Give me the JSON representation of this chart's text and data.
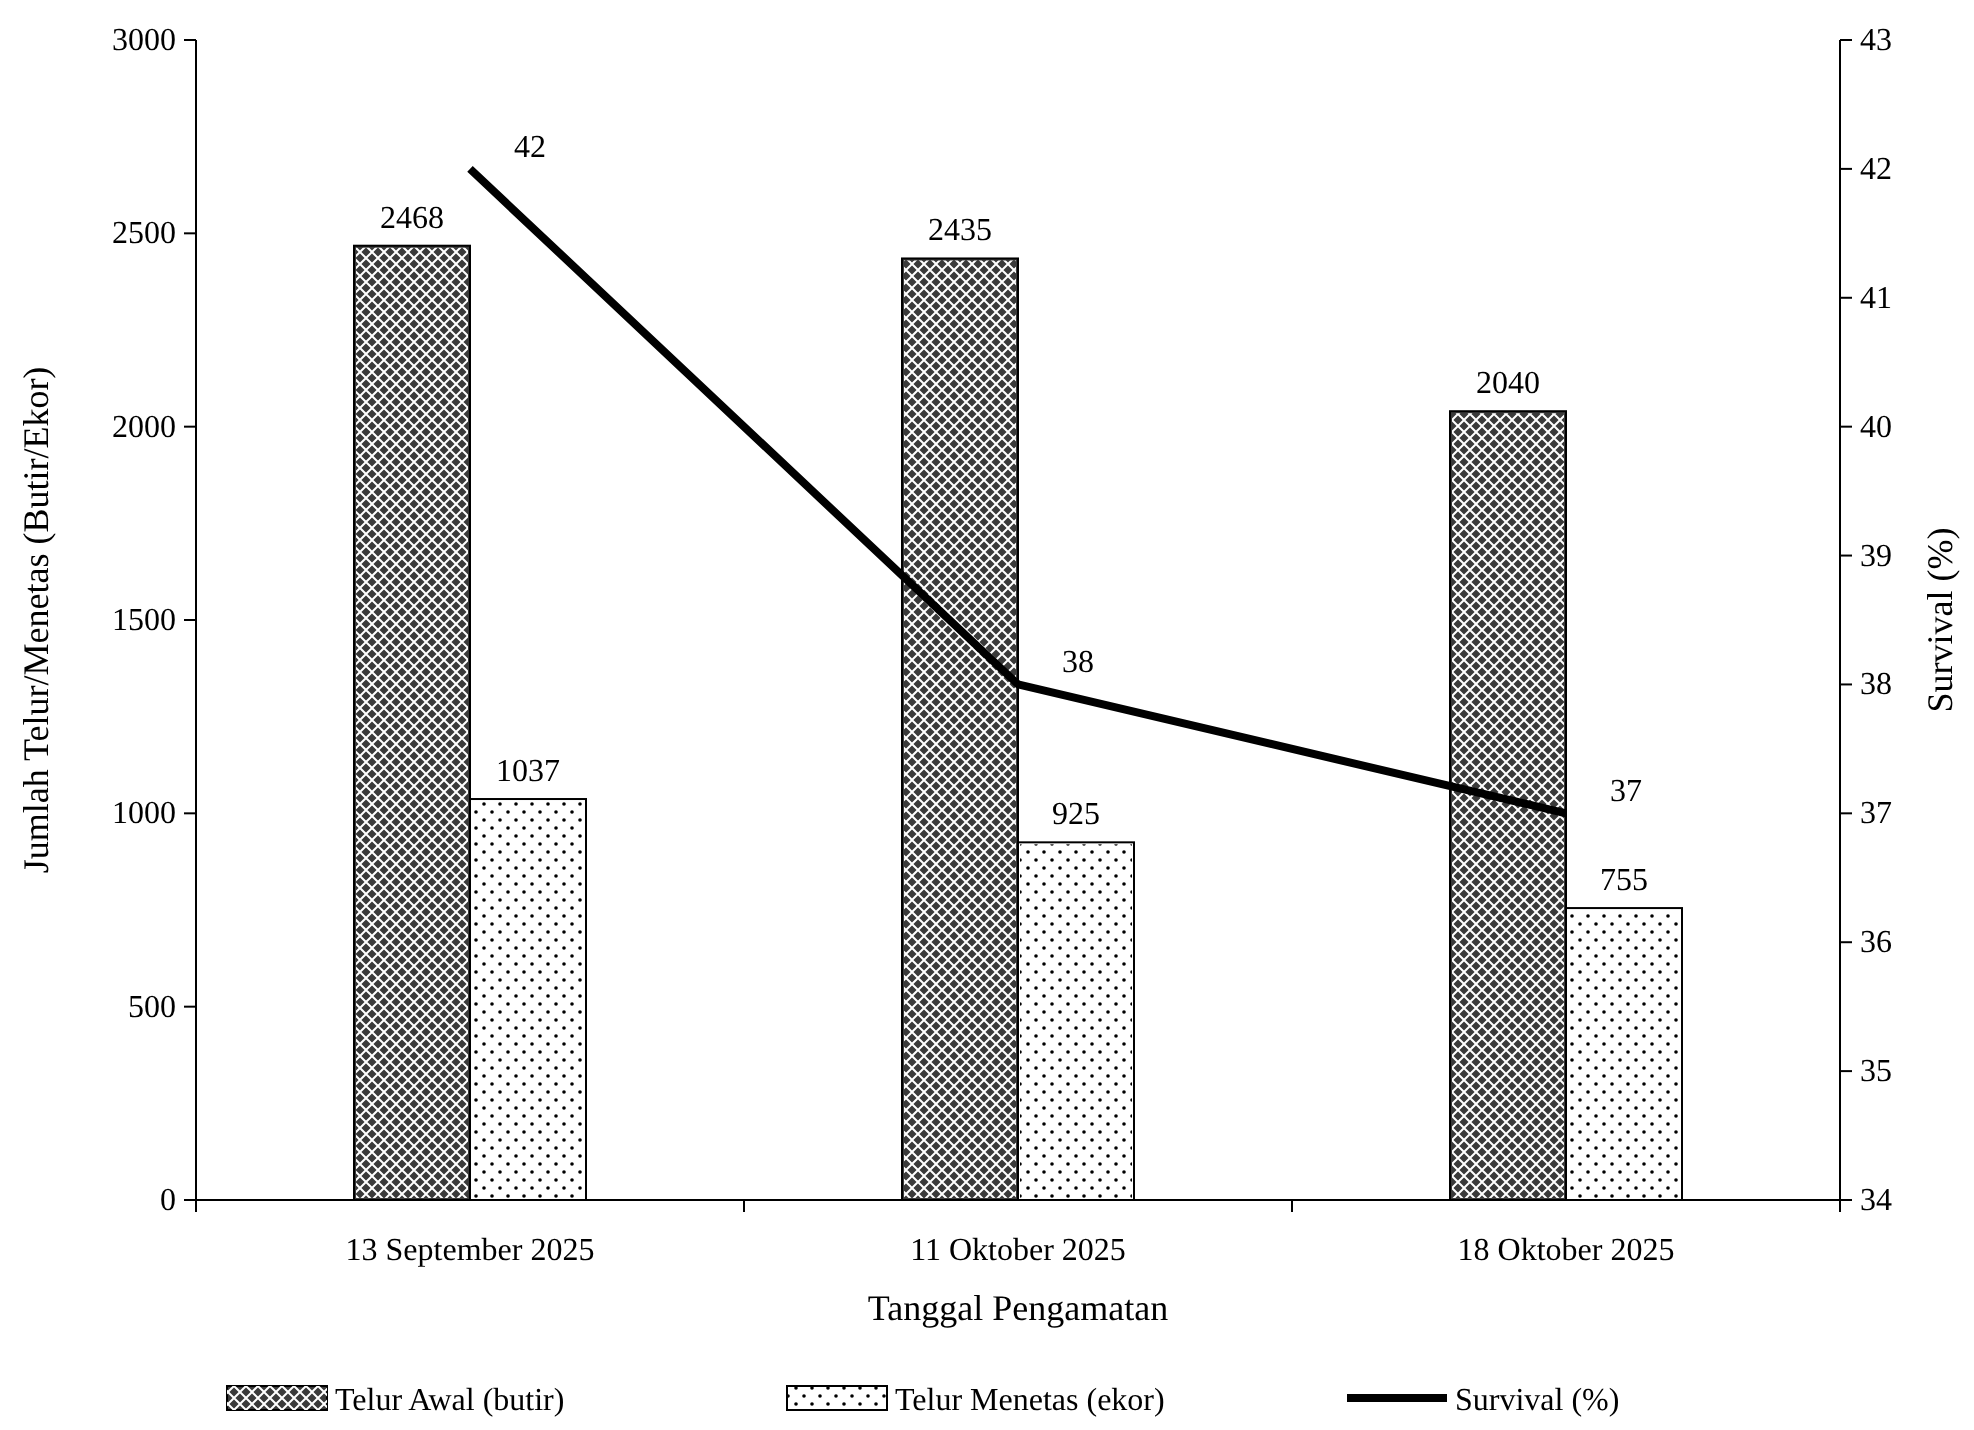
{
  "chart_data": {
    "type": "bar",
    "xlabel": "Tanggal Pengamatan",
    "ylabel": "Jumlah Telur/Menetas (Butir/Ekor)",
    "y2label": "Survival (%)",
    "categories": [
      "13 September 2025",
      "11 Oktober 2025",
      "18 Oktober 2025"
    ],
    "series": [
      {
        "name": "Telur Awal (butir)",
        "color": "#3a3a3a",
        "values": [
          2468,
          2435,
          2040
        ]
      },
      {
        "name": "Telur Menetas (ekor)",
        "color": "#ffffff",
        "values": [
          1037,
          925,
          755
        ]
      },
      {
        "name": "Survival (%)",
        "type": "line",
        "axis": "y2",
        "color": "#000000",
        "values": [
          42,
          38,
          37
        ]
      }
    ],
    "ylim": [
      0,
      3000
    ],
    "yticks": [
      0,
      500,
      1000,
      1500,
      2000,
      2500,
      3000
    ],
    "y2lim": [
      34,
      43
    ],
    "y2ticks": [
      34,
      35,
      36,
      37,
      38,
      39,
      40,
      41,
      42,
      43
    ],
    "data_labels": true,
    "legend": "bottom",
    "grid": false,
    "marker": "none",
    "line_style": "solid"
  }
}
